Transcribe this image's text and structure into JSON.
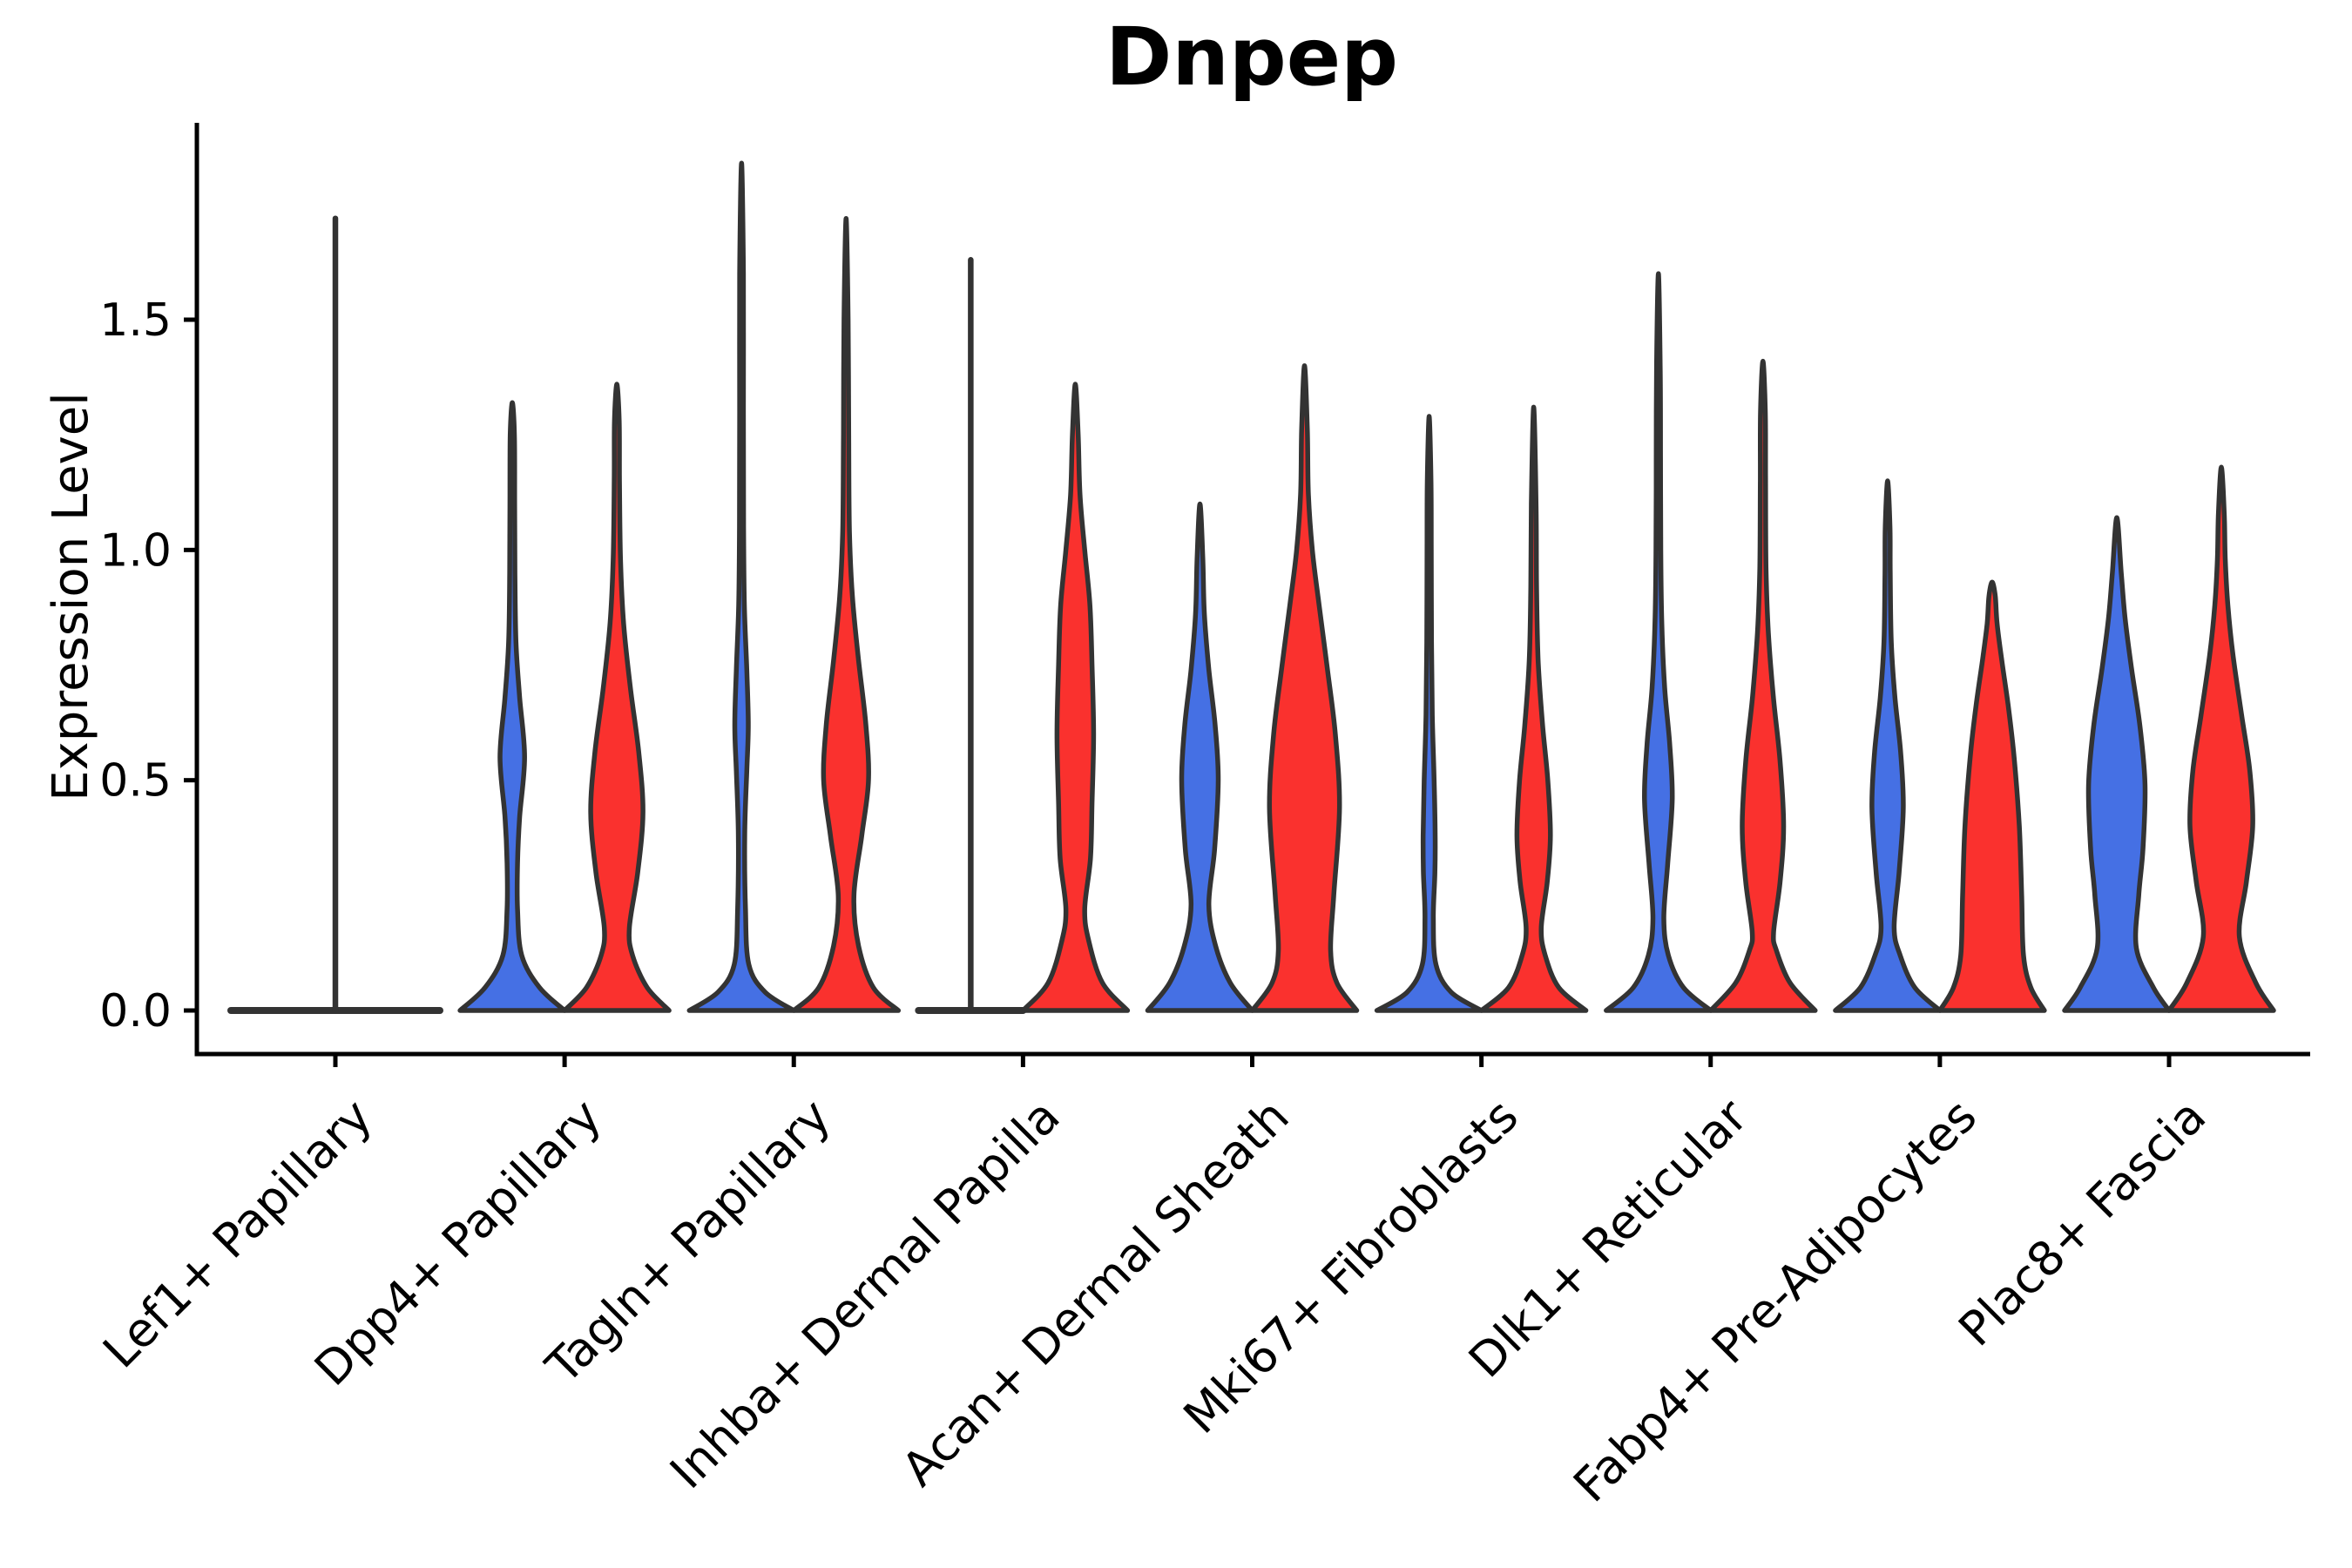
{
  "chart_data": {
    "type": "violin",
    "title": "Dnpep",
    "ylabel": "Expression Level",
    "xlabel": "",
    "grid": false,
    "legend_position": "none",
    "yticks": {
      "values": [
        0,
        0.5,
        1.0,
        1.5
      ],
      "labels": [
        "0.0",
        "0.5",
        "1.0",
        "1.5"
      ]
    },
    "ylim": [
      -0.05,
      1.93
    ],
    "split_colors": {
      "blue": "#4570E4",
      "red": "#FA312E",
      "outline": "#333333",
      "collapsed": "#333333"
    },
    "categories": [
      "Lef1+ Papillary",
      "Dpp4+ Papillary",
      "Tagln+ Papillary",
      "Inhba+ Dermal Papilla",
      "Acan+ Dermal Sheath",
      "Mki67+ Fibroblasts",
      "Dlk1+ Reticular",
      "Fabp4+ Pre-Adipocytes",
      "Plac8+ Fascia"
    ],
    "violins": [
      [
        {
          "slot": "center",
          "collapsed": true,
          "peak": 1.72,
          "base_halfwidth_rel": 2.0
        }
      ],
      [
        {
          "slot": "left",
          "color": "blue",
          "peak": 1.32,
          "profile": [
            [
              0,
              1.0
            ],
            [
              0.05,
              0.52
            ],
            [
              0.12,
              0.18
            ],
            [
              0.22,
              0.1
            ],
            [
              0.32,
              0.1
            ],
            [
              0.42,
              0.14
            ],
            [
              0.55,
              0.235
            ],
            [
              0.68,
              0.14
            ],
            [
              0.8,
              0.07
            ],
            [
              0.95,
              0.05
            ],
            [
              1.1,
              0.045
            ],
            [
              1.25,
              0.04
            ],
            [
              1.32,
              0
            ]
          ]
        },
        {
          "slot": "right",
          "color": "red",
          "peak": 1.36,
          "profile": [
            [
              0,
              1.0
            ],
            [
              0.05,
              0.58
            ],
            [
              0.12,
              0.3
            ],
            [
              0.18,
              0.24
            ],
            [
              0.3,
              0.4
            ],
            [
              0.43,
              0.5
            ],
            [
              0.56,
              0.42
            ],
            [
              0.7,
              0.26
            ],
            [
              0.84,
              0.13
            ],
            [
              0.98,
              0.07
            ],
            [
              1.15,
              0.05
            ],
            [
              1.28,
              0.045
            ],
            [
              1.36,
              0
            ]
          ]
        }
      ],
      [
        {
          "slot": "left",
          "color": "blue",
          "peak": 1.84,
          "profile": [
            [
              0,
              1.0
            ],
            [
              0.04,
              0.45
            ],
            [
              0.1,
              0.14
            ],
            [
              0.22,
              0.075
            ],
            [
              0.38,
              0.06
            ],
            [
              0.52,
              0.1
            ],
            [
              0.62,
              0.13
            ],
            [
              0.74,
              0.1
            ],
            [
              0.88,
              0.055
            ],
            [
              1.05,
              0.04
            ],
            [
              1.3,
              0.035
            ],
            [
              1.6,
              0.035
            ],
            [
              1.84,
              0
            ]
          ]
        },
        {
          "slot": "right",
          "color": "red",
          "peak": 1.72,
          "profile": [
            [
              0,
              1.0
            ],
            [
              0.05,
              0.52
            ],
            [
              0.14,
              0.24
            ],
            [
              0.25,
              0.15
            ],
            [
              0.38,
              0.3
            ],
            [
              0.5,
              0.43
            ],
            [
              0.62,
              0.38
            ],
            [
              0.76,
              0.24
            ],
            [
              0.9,
              0.12
            ],
            [
              1.04,
              0.065
            ],
            [
              1.25,
              0.05
            ],
            [
              1.5,
              0.04
            ],
            [
              1.72,
              0
            ]
          ]
        }
      ],
      [
        {
          "slot": "left",
          "collapsed": true,
          "peak": 1.63,
          "base_halfwidth_rel": 1.0
        },
        {
          "slot": "right",
          "color": "red",
          "peak": 1.36,
          "profile": [
            [
              0,
              1.0
            ],
            [
              0.06,
              0.52
            ],
            [
              0.15,
              0.26
            ],
            [
              0.22,
              0.18
            ],
            [
              0.33,
              0.29
            ],
            [
              0.45,
              0.32
            ],
            [
              0.6,
              0.35
            ],
            [
              0.75,
              0.32
            ],
            [
              0.88,
              0.28
            ],
            [
              1.0,
              0.18
            ],
            [
              1.12,
              0.09
            ],
            [
              1.25,
              0.055
            ],
            [
              1.36,
              0
            ]
          ]
        }
      ],
      [
        {
          "slot": "left",
          "color": "blue",
          "peak": 1.1,
          "profile": [
            [
              0,
              1.0
            ],
            [
              0.06,
              0.58
            ],
            [
              0.14,
              0.3
            ],
            [
              0.23,
              0.17
            ],
            [
              0.35,
              0.28
            ],
            [
              0.5,
              0.35
            ],
            [
              0.62,
              0.29
            ],
            [
              0.74,
              0.17
            ],
            [
              0.86,
              0.085
            ],
            [
              0.98,
              0.055
            ],
            [
              1.1,
              0
            ]
          ]
        },
        {
          "slot": "right",
          "color": "red",
          "peak": 1.4,
          "profile": [
            [
              0,
              1.0
            ],
            [
              0.06,
              0.62
            ],
            [
              0.13,
              0.5
            ],
            [
              0.25,
              0.56
            ],
            [
              0.44,
              0.67
            ],
            [
              0.6,
              0.59
            ],
            [
              0.74,
              0.44
            ],
            [
              0.88,
              0.28
            ],
            [
              1.0,
              0.15
            ],
            [
              1.12,
              0.075
            ],
            [
              1.26,
              0.055
            ],
            [
              1.4,
              0
            ]
          ]
        }
      ],
      [
        {
          "slot": "left",
          "color": "blue",
          "peak": 1.29,
          "profile": [
            [
              0,
              1.0
            ],
            [
              0.04,
              0.42
            ],
            [
              0.1,
              0.13
            ],
            [
              0.2,
              0.08
            ],
            [
              0.3,
              0.11
            ],
            [
              0.38,
              0.115
            ],
            [
              0.5,
              0.095
            ],
            [
              0.64,
              0.06
            ],
            [
              0.8,
              0.045
            ],
            [
              1.0,
              0.04
            ],
            [
              1.15,
              0.035
            ],
            [
              1.29,
              0
            ]
          ]
        },
        {
          "slot": "right",
          "color": "red",
          "peak": 1.31,
          "profile": [
            [
              0,
              1.0
            ],
            [
              0.05,
              0.48
            ],
            [
              0.12,
              0.22
            ],
            [
              0.18,
              0.145
            ],
            [
              0.28,
              0.26
            ],
            [
              0.38,
              0.32
            ],
            [
              0.5,
              0.27
            ],
            [
              0.62,
              0.17
            ],
            [
              0.76,
              0.085
            ],
            [
              0.92,
              0.055
            ],
            [
              1.1,
              0.045
            ],
            [
              1.31,
              0
            ]
          ]
        }
      ],
      [
        {
          "slot": "left",
          "color": "blue",
          "peak": 1.6,
          "profile": [
            [
              0,
              1.0
            ],
            [
              0.05,
              0.48
            ],
            [
              0.12,
              0.19
            ],
            [
              0.2,
              0.105
            ],
            [
              0.32,
              0.18
            ],
            [
              0.46,
              0.265
            ],
            [
              0.58,
              0.215
            ],
            [
              0.7,
              0.12
            ],
            [
              0.84,
              0.065
            ],
            [
              1.0,
              0.045
            ],
            [
              1.2,
              0.04
            ],
            [
              1.4,
              0.035
            ],
            [
              1.6,
              0
            ]
          ]
        },
        {
          "slot": "right",
          "color": "red",
          "peak": 1.41,
          "profile": [
            [
              0,
              1.0
            ],
            [
              0.06,
              0.52
            ],
            [
              0.13,
              0.26
            ],
            [
              0.17,
              0.205
            ],
            [
              0.28,
              0.33
            ],
            [
              0.4,
              0.395
            ],
            [
              0.54,
              0.33
            ],
            [
              0.68,
              0.2
            ],
            [
              0.82,
              0.105
            ],
            [
              0.96,
              0.06
            ],
            [
              1.15,
              0.05
            ],
            [
              1.3,
              0.045
            ],
            [
              1.41,
              0
            ]
          ]
        }
      ],
      [
        {
          "slot": "left",
          "color": "blue",
          "peak": 1.15,
          "profile": [
            [
              0,
              1.0
            ],
            [
              0.05,
              0.52
            ],
            [
              0.12,
              0.24
            ],
            [
              0.18,
              0.125
            ],
            [
              0.3,
              0.22
            ],
            [
              0.44,
              0.3
            ],
            [
              0.56,
              0.25
            ],
            [
              0.68,
              0.14
            ],
            [
              0.8,
              0.07
            ],
            [
              0.95,
              0.05
            ],
            [
              1.05,
              0.045
            ],
            [
              1.15,
              0
            ]
          ]
        },
        {
          "slot": "right",
          "color": "red",
          "peak": 0.93,
          "profile": [
            [
              0,
              1.0
            ],
            [
              0.05,
              0.74
            ],
            [
              0.12,
              0.6
            ],
            [
              0.25,
              0.565
            ],
            [
              0.4,
              0.52
            ],
            [
              0.55,
              0.42
            ],
            [
              0.66,
              0.31
            ],
            [
              0.76,
              0.185
            ],
            [
              0.84,
              0.095
            ],
            [
              0.9,
              0.06
            ],
            [
              0.93,
              0
            ]
          ]
        }
      ],
      [
        {
          "slot": "left",
          "color": "blue",
          "peak": 1.07,
          "profile": [
            [
              0,
              1.0
            ],
            [
              0.05,
              0.7
            ],
            [
              0.135,
              0.375
            ],
            [
              0.25,
              0.42
            ],
            [
              0.35,
              0.5
            ],
            [
              0.49,
              0.54
            ],
            [
              0.62,
              0.44
            ],
            [
              0.74,
              0.285
            ],
            [
              0.85,
              0.16
            ],
            [
              0.95,
              0.085
            ],
            [
              1.07,
              0
            ]
          ]
        },
        {
          "slot": "right",
          "color": "red",
          "peak": 1.18,
          "profile": [
            [
              0,
              1.0
            ],
            [
              0.06,
              0.66
            ],
            [
              0.16,
              0.345
            ],
            [
              0.28,
              0.48
            ],
            [
              0.4,
              0.6
            ],
            [
              0.52,
              0.545
            ],
            [
              0.64,
              0.39
            ],
            [
              0.77,
              0.225
            ],
            [
              0.88,
              0.125
            ],
            [
              0.98,
              0.075
            ],
            [
              1.08,
              0.055
            ],
            [
              1.18,
              0
            ]
          ]
        }
      ]
    ]
  }
}
